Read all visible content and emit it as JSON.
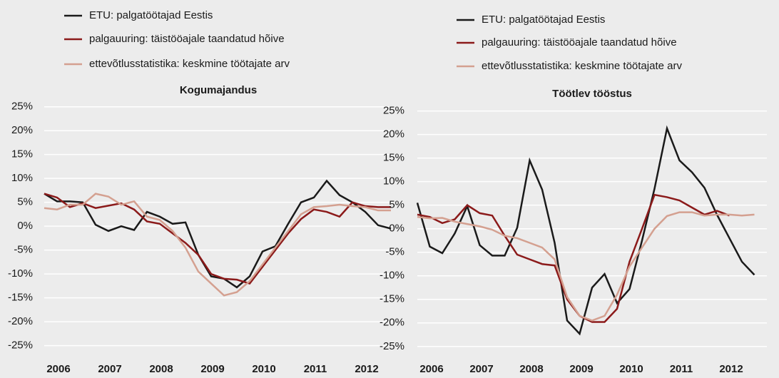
{
  "chart_data": [
    {
      "type": "line",
      "title": "Kogumajandus",
      "categories": [
        "2006",
        null,
        null,
        null,
        "2007",
        null,
        null,
        null,
        "2008",
        null,
        null,
        null,
        "2009",
        null,
        null,
        null,
        "2010",
        null,
        null,
        null,
        "2011",
        null,
        null,
        null,
        "2012",
        null,
        null,
        null
      ],
      "series": [
        {
          "name": "ETU: palgatöötajad Eestis",
          "color": "#1a1a1a",
          "values": [
            6.8,
            5.2,
            5.2,
            5,
            0.3,
            -1,
            0,
            -0.8,
            3,
            2,
            0.5,
            0.8,
            -6,
            -10.5,
            -11,
            -12.8,
            -10.5,
            -5.3,
            -4.2,
            0.5,
            5,
            6,
            9.5,
            6.5,
            5,
            3,
            0.2,
            -0.5
          ]
        },
        {
          "name": "palgauuring: täistööajale taandatud hõive",
          "color": "#8b1a1a",
          "values": [
            6.8,
            6,
            4,
            4.8,
            3.8,
            4.3,
            4.8,
            3.5,
            1,
            0.5,
            -1.5,
            -3.5,
            -6,
            -10,
            -11,
            -11.2,
            -12,
            -8.5,
            -5,
            -1.5,
            1.5,
            3.5,
            3,
            2,
            5,
            4.2,
            4,
            4
          ]
        },
        {
          "name": "ettevõtlusstatistika: keskmine töötajate arv",
          "color": "#d4a090",
          "values": [
            3.8,
            3.5,
            4.5,
            4.5,
            6.8,
            6.2,
            4.5,
            5.2,
            2,
            1.3,
            -1,
            -4.5,
            -9.5,
            -12,
            -14.5,
            -13.8,
            -11.5,
            -8,
            -4.5,
            -1,
            2.5,
            4,
            4.2,
            4.5,
            4.2,
            4,
            3.3,
            3.3
          ]
        }
      ],
      "ylim": [
        -27,
        26
      ],
      "yticks": [
        {
          "value": -25,
          "label": "-25%"
        },
        {
          "value": -20,
          "label": "-20%"
        },
        {
          "value": -15,
          "label": "-15%"
        },
        {
          "value": -10,
          "label": "-10%"
        },
        {
          "value": -5,
          "label": "-5%"
        },
        {
          "value": 0,
          "label": "0%"
        },
        {
          "value": 5,
          "label": "5%"
        },
        {
          "value": 10,
          "label": "10%"
        },
        {
          "value": 15,
          "label": "15%"
        },
        {
          "value": 20,
          "label": "20%"
        },
        {
          "value": 25,
          "label": "25%"
        }
      ],
      "grid": true
    },
    {
      "type": "line",
      "title": "Töötlev tööstus",
      "categories": [
        "2006",
        null,
        null,
        null,
        "2007",
        null,
        null,
        null,
        "2008",
        null,
        null,
        null,
        "2009",
        null,
        null,
        null,
        "2010",
        null,
        null,
        null,
        "2011",
        null,
        null,
        null,
        "2012",
        null,
        null,
        null
      ],
      "series": [
        {
          "name": "ETU: palgatöötajad Eestis",
          "color": "#1a1a1a",
          "values": [
            5.5,
            -3.8,
            -5.2,
            -1,
            4.8,
            -3.5,
            -5.7,
            -5.7,
            0.2,
            14.5,
            8.3,
            -3,
            -19.5,
            -22.3,
            -12.5,
            -9.6,
            -15.8,
            -12.8,
            -2.5,
            8.5,
            21.3,
            14.5,
            12,
            8.7,
            3,
            -2,
            -7,
            -9.8
          ]
        },
        {
          "name": "palgauuring: täistööajale taandatud hõive",
          "color": "#8b1a1a",
          "values": [
            3,
            2.5,
            1.2,
            2,
            5,
            3.3,
            2.8,
            -1.5,
            -5.5,
            -6.5,
            -7.5,
            -7.8,
            -15,
            -18.5,
            -19.8,
            -19.8,
            -17,
            -7,
            0,
            7.2,
            6.7,
            6,
            4.5,
            3,
            3.8,
            2.8,
            null,
            null
          ]
        },
        {
          "name": "ettevõtlusstatistika: keskmine töötajate arv",
          "color": "#d4a090",
          "values": [
            2.5,
            2.2,
            2.3,
            1.5,
            1,
            0.5,
            -0.2,
            -1.5,
            -2,
            -3,
            -4,
            -6.5,
            -14.5,
            -18.5,
            -19.5,
            -18.5,
            -14,
            -8,
            -4,
            0,
            2.7,
            3.5,
            3.5,
            2.8,
            3,
            3,
            2.8,
            3
          ]
        }
      ],
      "ylim": [
        -27,
        26
      ],
      "yticks": [
        {
          "value": -25,
          "label": "-25%"
        },
        {
          "value": -20,
          "label": "-20%"
        },
        {
          "value": -15,
          "label": "-15%"
        },
        {
          "value": -10,
          "label": "-10%"
        },
        {
          "value": -5,
          "label": "-5%"
        },
        {
          "value": 0,
          "label": "0%"
        },
        {
          "value": 5,
          "label": "5%"
        },
        {
          "value": 10,
          "label": "10%"
        },
        {
          "value": 15,
          "label": "15%"
        },
        {
          "value": 20,
          "label": "20%"
        },
        {
          "value": 25,
          "label": "25%"
        }
      ],
      "grid": true
    }
  ]
}
